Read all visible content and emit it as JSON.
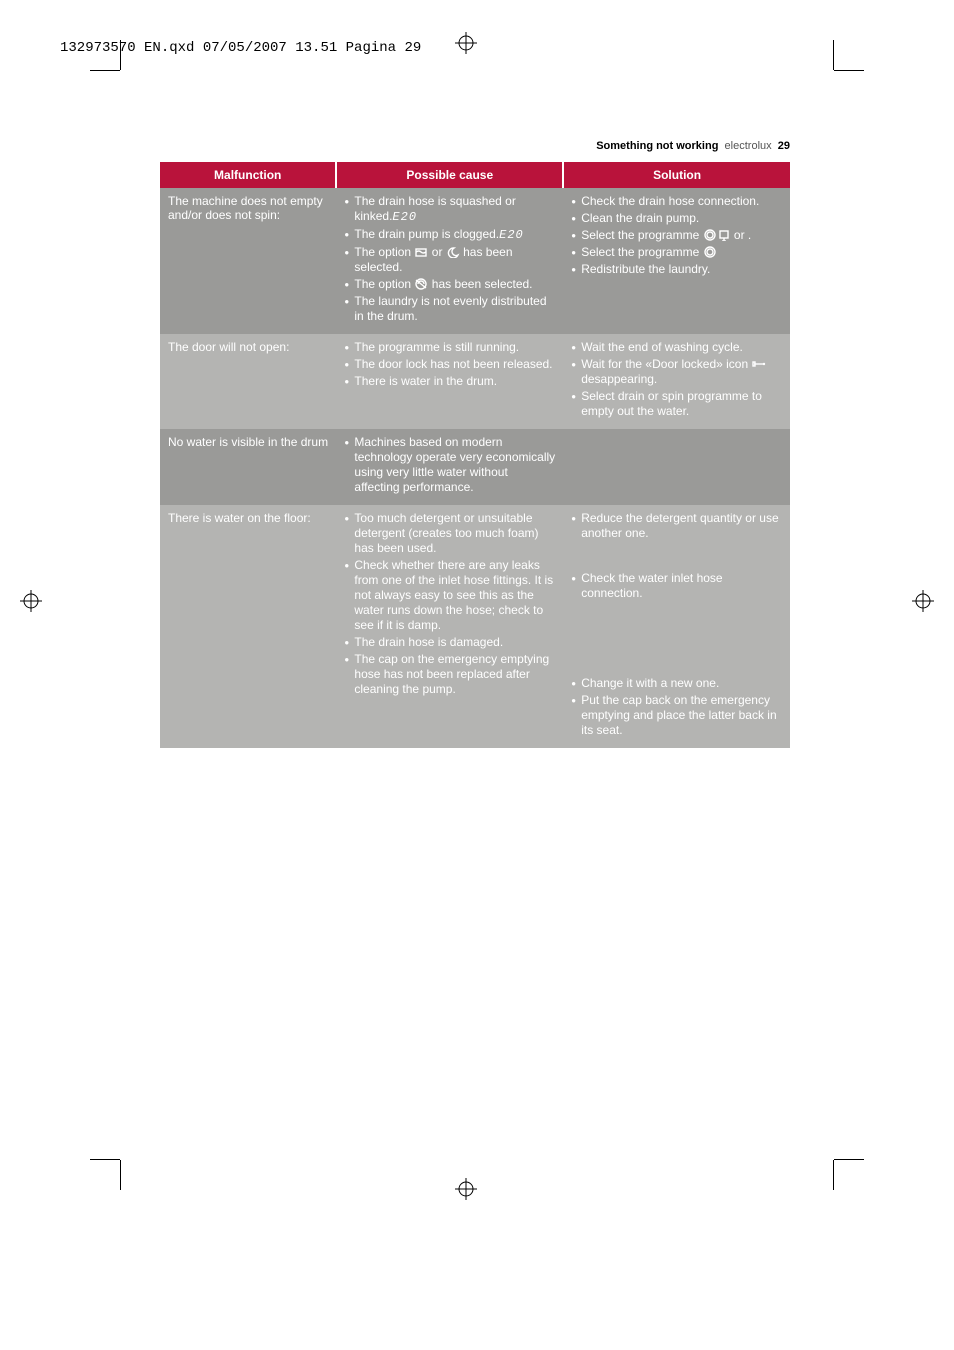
{
  "print_header": "132973570 EN.qxd  07/05/2007  13.51  Pagina  29",
  "page_header": {
    "section": "Something not working",
    "brand": "electrolux",
    "page": "29"
  },
  "columns": {
    "malfunction": "Malfunction",
    "cause": "Possible cause",
    "solution": "Solution"
  },
  "rows": [
    {
      "shade": "dark",
      "malfunction": "The machine does not empty and/or does not spin:",
      "causes": [
        {
          "text": "The drain hose is squashed or kinked.",
          "code": "E20"
        },
        {
          "text": "The drain pump is clogged.",
          "code": "E20"
        },
        {
          "text": "The option ",
          "icon1": "rinse-hold",
          "mid": " or ",
          "icon2": "night",
          "tail": " has been selected."
        },
        {
          "text": "The option ",
          "icon1": "no-spin",
          "tail": " has been selected."
        },
        {
          "text": "The laundry is not evenly distributed in the drum."
        }
      ],
      "solutions": [
        {
          "text": "Check the drain hose connection."
        },
        {
          "text": "Clean the drain pump."
        },
        {
          "text": "Select the programme ",
          "icon1": "spin",
          "tail": " or ",
          "icon2": "drain",
          "tail2": " ."
        },
        {
          "text": "Select the programme ",
          "icon1": "spin"
        },
        {
          "text": "Redistribute the laundry."
        }
      ]
    },
    {
      "shade": "light",
      "malfunction": "The door will not open:",
      "causes": [
        {
          "text": "The programme is still running."
        },
        {
          "text": "The door lock has not been released."
        },
        {
          "text": "There is water in the drum."
        }
      ],
      "solutions": [
        {
          "text": "Wait the end of washing cycle."
        },
        {
          "text": "Wait for the «Door locked» icon ",
          "icon1": "lock",
          "tail": " desappearing."
        },
        {
          "text": "Select drain or spin programme to empty out the water."
        }
      ]
    },
    {
      "shade": "dark",
      "malfunction": "No water is visible in the drum",
      "causes": [
        {
          "text": "Machines based on modern technology operate very economically using very little water without affecting performance."
        }
      ],
      "solutions": []
    },
    {
      "shade": "light",
      "malfunction": "There is water on the floor:",
      "causes": [
        {
          "text": "Too much detergent or unsuitable detergent (creates too much foam) has been used."
        },
        {
          "text": "Check whether there are any leaks from one of the inlet hose fittings. It is not always easy to see this as the water runs down the hose; check to see if it is damp."
        },
        {
          "text": "The drain hose is damaged."
        },
        {
          "text": "The cap on the emergency emptying hose has not been replaced after cleaning the pump."
        }
      ],
      "solutions": [
        {
          "text": "Reduce the detergent quantity or use another one."
        },
        {
          "text": "Check the water inlet hose connection.",
          "spacer_before": 2
        },
        {
          "text": "Change it with a new one.",
          "spacer_before": 5
        },
        {
          "text": "Put the cap back on the emergency emptying and place the latter back in its seat."
        }
      ]
    }
  ]
}
